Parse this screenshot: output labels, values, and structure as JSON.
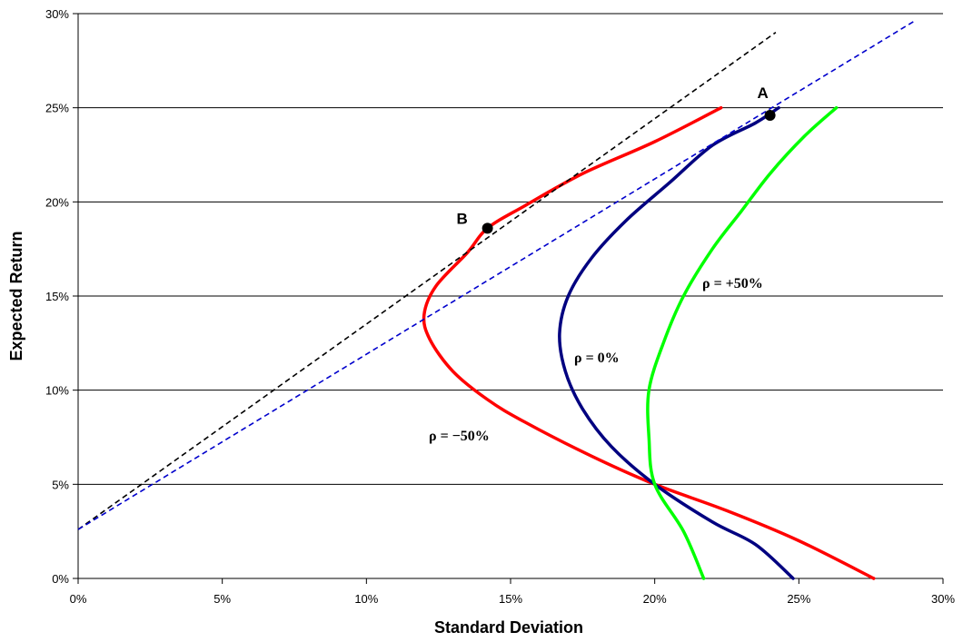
{
  "chart_data": {
    "type": "line",
    "title": "",
    "xlabel": "Standard Deviation",
    "ylabel": "Expected Return",
    "xlim": [
      0,
      30
    ],
    "ylim": [
      0,
      30
    ],
    "x_ticks": [
      "0%",
      "5%",
      "10%",
      "15%",
      "20%",
      "25%",
      "30%"
    ],
    "y_ticks": [
      "0%",
      "5%",
      "10%",
      "15%",
      "20%",
      "25%",
      "30%"
    ],
    "grid": "horizontal",
    "legend": "none",
    "curve_labels": [
      "ρ = −50%",
      "ρ = 0%",
      "ρ = +50%"
    ],
    "series": [
      {
        "color": "#ff0000",
        "x": [
          27.6,
          25.0,
          22.5,
          20.0,
          17.8,
          15.5,
          14.2,
          13.0,
          12.2,
          12.0,
          12.4,
          13.5,
          14.2,
          15.5,
          17.5,
          20.0,
          22.3
        ],
        "y": [
          0.0,
          2.0,
          3.6,
          5.0,
          6.5,
          8.3,
          9.5,
          11.0,
          12.7,
          14.0,
          15.5,
          17.3,
          18.6,
          19.8,
          21.5,
          23.2,
          25.0
        ]
      },
      {
        "color": "#000080",
        "x": [
          24.8,
          23.5,
          22.0,
          20.0,
          18.5,
          17.5,
          16.9,
          16.7,
          17.0,
          17.8,
          19.0,
          20.5,
          22.0,
          23.5,
          24.3
        ],
        "y": [
          0.0,
          1.8,
          3.0,
          5.0,
          7.0,
          9.0,
          11.0,
          13.0,
          15.0,
          17.0,
          19.0,
          21.0,
          23.0,
          24.2,
          25.0
        ]
      },
      {
        "color": "#00ff00",
        "x": [
          21.7,
          21.0,
          20.0,
          19.8,
          19.8,
          20.3,
          21.0,
          22.0,
          23.0,
          24.0,
          25.2,
          26.3
        ],
        "y": [
          0.0,
          2.5,
          5.0,
          7.5,
          10.0,
          12.5,
          15.0,
          17.5,
          19.5,
          21.5,
          23.5,
          25.0
        ]
      },
      {
        "color": "#000000",
        "dashed": true,
        "x": [
          0,
          24.2
        ],
        "y": [
          2.6,
          29.0
        ]
      },
      {
        "color": "#0000cc",
        "dashed": true,
        "x": [
          0,
          29.0
        ],
        "y": [
          2.6,
          29.6
        ]
      }
    ],
    "points": [
      {
        "label": "A",
        "x": 24.0,
        "y": 24.6
      },
      {
        "label": "B",
        "x": 14.2,
        "y": 18.6
      }
    ]
  }
}
